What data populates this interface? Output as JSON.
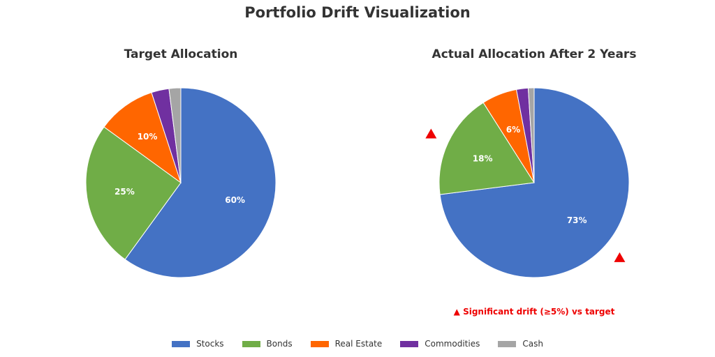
{
  "title": "Portfolio Drift Visualization",
  "drift_note": "▲ Significant drift (≥5%) vs target",
  "colors": {
    "Stocks": "#4472c4",
    "Bonds": "#70ad47",
    "Real Estate": "#ff6600",
    "Commodities": "#7030a0",
    "Cash": "#a5a5a5",
    "drift_marker": "#ee0000"
  },
  "legend": [
    "Stocks",
    "Bonds",
    "Real Estate",
    "Commodities",
    "Cash"
  ],
  "chart_data": [
    {
      "type": "pie",
      "title": "Target Allocation",
      "labels": [
        "Stocks",
        "Bonds",
        "Real Estate",
        "Commodities",
        "Cash"
      ],
      "values": [
        60,
        25,
        10,
        3,
        2
      ],
      "data_labels": [
        "60%",
        "25%",
        "10%",
        "",
        ""
      ],
      "start_angle": 90,
      "direction": "clockwise"
    },
    {
      "type": "pie",
      "title": "Actual Allocation After 2 Years",
      "labels": [
        "Stocks",
        "Bonds",
        "Real Estate",
        "Commodities",
        "Cash"
      ],
      "values": [
        73,
        18,
        6,
        2,
        1
      ],
      "data_labels": [
        "73%",
        "18%",
        "6%",
        "",
        ""
      ],
      "drift_flags": [
        true,
        true,
        false,
        false,
        false
      ],
      "start_angle": 90,
      "direction": "clockwise"
    }
  ]
}
